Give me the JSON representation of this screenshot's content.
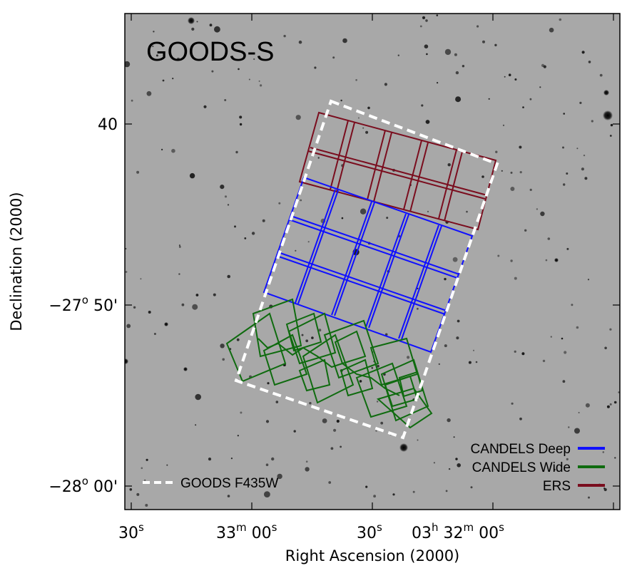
{
  "title": "GOODS-S",
  "x_axis": {
    "label": "Right Ascension (2000)",
    "ticks": [
      {
        "main": "30",
        "sup": "s"
      },
      {
        "main": "33",
        "sup": "m",
        "main2": " 00",
        "sup2": "s"
      },
      {
        "main": "30",
        "sup": "s"
      },
      {
        "main": "03",
        "sup": "h",
        "main2": " 32",
        "sup2": "m",
        "main3": " 00",
        "sup3": "s"
      }
    ]
  },
  "y_axis": {
    "label": "Declination (2000)",
    "ticks": [
      {
        "main": "40"
      },
      {
        "main": "−27",
        "sup": "o",
        "main2": " 50'"
      },
      {
        "main": "−28",
        "sup": "o",
        "main2": " 00'"
      }
    ]
  },
  "legend": {
    "candels_deep": {
      "label": "CANDELS Deep",
      "color": "#1010ff"
    },
    "candels_wide": {
      "label": "CANDELS Wide",
      "color": "#0f6b0f"
    },
    "ers": {
      "label": "ERS",
      "color": "#7a0d1e"
    },
    "goods": {
      "label": "GOODS F435W",
      "color": "#ffffff"
    }
  },
  "colors": {
    "sky": "#a8a8a8",
    "frame": "#000000"
  }
}
